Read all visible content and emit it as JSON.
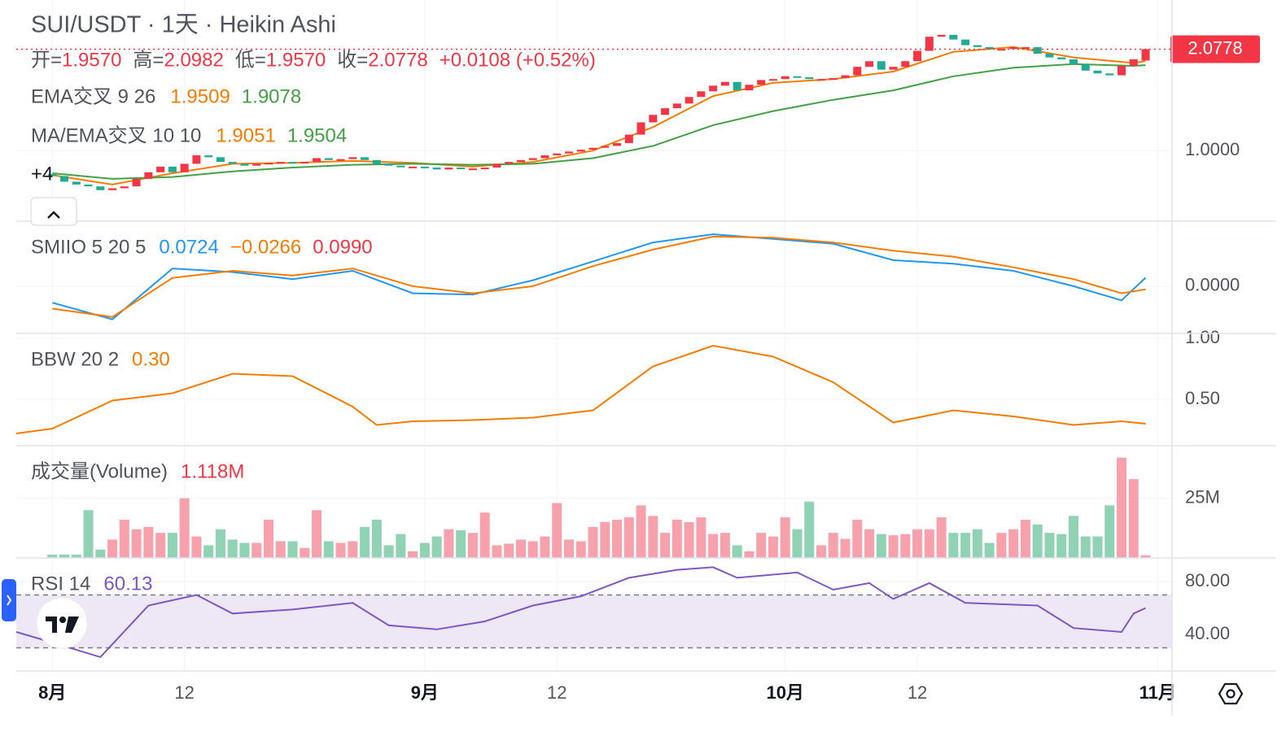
{
  "chart_data": [
    {
      "type": "candlestick",
      "title": "SUI/USDT · 1天 · Heikin Ashi",
      "ohlc_legend": [
        {
          "label": "开=",
          "value": "1.9570"
        },
        {
          "label": "高=",
          "value": "2.0982"
        },
        {
          "label": "低=",
          "value": "1.9570"
        },
        {
          "label": "收=",
          "value": "2.0778"
        }
      ],
      "change": "+0.0108 (+0.52%)",
      "indicators": [
        {
          "name": "EMA交叉 9 26",
          "values": [
            "1.9509",
            "1.9078"
          ],
          "colors": [
            "#f57c00",
            "#43a047"
          ]
        },
        {
          "name": "MA/EMA交叉 10 10",
          "values": [
            "1.9051",
            "1.9504"
          ],
          "colors": [
            "#f57c00",
            "#43a047"
          ]
        }
      ],
      "hidden_indicators": "+4",
      "up_color": "#f23645",
      "down_color": "#22ab94",
      "x": [
        0,
        1,
        2,
        3,
        4,
        5,
        6,
        7,
        8,
        9,
        10,
        11,
        12,
        13,
        14,
        15,
        16,
        17,
        18,
        19,
        20,
        21,
        22,
        23,
        24,
        25,
        26,
        27,
        28,
        29,
        30,
        31,
        32,
        33,
        34,
        35,
        36,
        37,
        38,
        39,
        40,
        41,
        42,
        43,
        44,
        45,
        46,
        47,
        48,
        49,
        50,
        51,
        52,
        53,
        54,
        55,
        56,
        57,
        58,
        59,
        60,
        61,
        62,
        63,
        64,
        65,
        66,
        67,
        68,
        69,
        70,
        71,
        72,
        73,
        74,
        75,
        76,
        77,
        78,
        79,
        80,
        81,
        82,
        83,
        84,
        85,
        86,
        87,
        88,
        89,
        90,
        91
      ],
      "open": [
        0.75,
        0.73,
        0.67,
        0.64,
        0.62,
        0.58,
        0.6,
        0.62,
        0.7,
        0.77,
        0.83,
        0.77,
        0.86,
        0.95,
        0.93,
        0.88,
        0.86,
        0.84,
        0.86,
        0.87,
        0.88,
        0.87,
        0.88,
        0.92,
        0.9,
        0.91,
        0.93,
        0.9,
        0.86,
        0.84,
        0.83,
        0.83,
        0.82,
        0.8,
        0.82,
        0.81,
        0.81,
        0.82,
        0.86,
        0.88,
        0.9,
        0.92,
        0.95,
        0.97,
        0.99,
        1.01,
        1.03,
        1.05,
        1.08,
        1.17,
        1.3,
        1.38,
        1.45,
        1.5,
        1.57,
        1.63,
        1.69,
        1.73,
        1.64,
        1.7,
        1.75,
        1.76,
        1.79,
        1.78,
        1.76,
        1.76,
        1.77,
        1.8,
        1.89,
        1.95,
        1.86,
        1.89,
        1.95,
        2.06,
        2.21,
        2.23,
        2.18,
        2.12,
        2.1,
        2.08,
        2.08,
        2.1,
        2.1,
        2.03,
        1.99,
        1.97,
        1.92,
        1.85,
        1.82,
        1.8,
        1.9,
        1.957
      ],
      "close": [
        0.73,
        0.67,
        0.64,
        0.62,
        0.58,
        0.6,
        0.62,
        0.7,
        0.77,
        0.83,
        0.77,
        0.86,
        0.95,
        0.93,
        0.88,
        0.86,
        0.84,
        0.86,
        0.87,
        0.88,
        0.87,
        0.88,
        0.92,
        0.9,
        0.91,
        0.93,
        0.9,
        0.86,
        0.84,
        0.83,
        0.83,
        0.82,
        0.8,
        0.82,
        0.81,
        0.81,
        0.82,
        0.86,
        0.88,
        0.9,
        0.92,
        0.95,
        0.97,
        0.99,
        1.01,
        1.03,
        1.05,
        1.08,
        1.17,
        1.3,
        1.38,
        1.45,
        1.5,
        1.57,
        1.63,
        1.69,
        1.73,
        1.64,
        1.7,
        1.75,
        1.76,
        1.79,
        1.78,
        1.76,
        1.76,
        1.77,
        1.8,
        1.89,
        1.95,
        1.86,
        1.89,
        1.95,
        2.06,
        2.21,
        2.23,
        2.18,
        2.12,
        2.1,
        2.08,
        2.08,
        2.1,
        2.1,
        2.03,
        1.99,
        1.97,
        1.92,
        1.85,
        1.82,
        1.8,
        1.9,
        1.97,
        2.0778
      ],
      "lines": [
        {
          "color": "#f57c00",
          "x": [
            0,
            5,
            10,
            15,
            20,
            25,
            30,
            35,
            40,
            45,
            50,
            55,
            60,
            65,
            70,
            75,
            80,
            85,
            90,
            91
          ],
          "values": [
            0.74,
            0.64,
            0.76,
            0.86,
            0.87,
            0.89,
            0.87,
            0.83,
            0.88,
            1.0,
            1.25,
            1.58,
            1.72,
            1.76,
            1.84,
            2.05,
            2.1,
            1.99,
            1.93,
            1.9509
          ]
        },
        {
          "color": "#43a047",
          "x": [
            0,
            5,
            10,
            15,
            20,
            25,
            30,
            35,
            40,
            45,
            50,
            55,
            60,
            65,
            70,
            75,
            80,
            85,
            90,
            91
          ],
          "values": [
            0.76,
            0.7,
            0.72,
            0.78,
            0.82,
            0.85,
            0.86,
            0.85,
            0.86,
            0.92,
            1.05,
            1.27,
            1.42,
            1.54,
            1.64,
            1.79,
            1.88,
            1.92,
            1.9,
            1.9078
          ]
        }
      ],
      "last_price": {
        "value": 2.0778,
        "label": "2.0778"
      },
      "ylim": [
        0.25,
        2.6
      ],
      "yticks": [
        {
          "value": 1,
          "label": "1.0000"
        }
      ],
      "xlim": [
        -3,
        93.2
      ],
      "xticks": [
        {
          "value": 0,
          "label": "8月"
        },
        {
          "value": 11,
          "label": "12"
        },
        {
          "value": 31,
          "label": "9月"
        },
        {
          "value": 42,
          "label": "12"
        },
        {
          "value": 61,
          "label": "10月"
        },
        {
          "value": 72,
          "label": "12"
        },
        {
          "value": 92,
          "label": "11月"
        }
      ]
    },
    {
      "type": "line",
      "name": "SMIIO 5 20 5",
      "legend_values": [
        {
          "text": "0.0724",
          "color": "#2196f3"
        },
        {
          "text": "−0.0266",
          "color": "#f57c00"
        },
        {
          "text": "0.0990",
          "color": "#f23645"
        }
      ],
      "series": [
        {
          "color": "#2196f3",
          "x": [
            0,
            5,
            10,
            15,
            20,
            25,
            30,
            35,
            40,
            45,
            50,
            55,
            60,
            65,
            70,
            75,
            80,
            85,
            89,
            91
          ],
          "values": [
            -0.14,
            -0.28,
            0.15,
            0.12,
            0.06,
            0.13,
            -0.06,
            -0.07,
            0.05,
            0.21,
            0.37,
            0.44,
            0.4,
            0.36,
            0.22,
            0.19,
            0.13,
            0.0,
            -0.12,
            0.0724
          ]
        },
        {
          "color": "#f57c00",
          "x": [
            0,
            5,
            10,
            15,
            20,
            25,
            30,
            35,
            40,
            45,
            50,
            55,
            60,
            65,
            70,
            75,
            80,
            85,
            89,
            91
          ],
          "values": [
            -0.19,
            -0.26,
            0.07,
            0.13,
            0.09,
            0.15,
            0.0,
            -0.06,
            0.0,
            0.17,
            0.31,
            0.42,
            0.41,
            0.37,
            0.3,
            0.25,
            0.16,
            0.06,
            -0.06,
            -0.0266
          ]
        }
      ],
      "ylim": [
        -0.4,
        0.55
      ],
      "yticks": [
        {
          "value": 0,
          "label": "0.0000"
        }
      ]
    },
    {
      "type": "line",
      "name": "BBW 20 2",
      "legend_values": [
        {
          "text": "0.30",
          "color": "#f57c00"
        }
      ],
      "series": [
        {
          "color": "#f57c00",
          "x": [
            -3,
            0,
            5,
            10,
            15,
            20,
            25,
            27,
            30,
            35,
            40,
            45,
            50,
            55,
            60,
            65,
            70,
            75,
            80,
            85,
            89,
            91
          ],
          "values": [
            0.22,
            0.26,
            0.49,
            0.55,
            0.71,
            0.69,
            0.44,
            0.29,
            0.32,
            0.33,
            0.35,
            0.41,
            0.77,
            0.94,
            0.85,
            0.64,
            0.31,
            0.41,
            0.36,
            0.29,
            0.32,
            0.3
          ]
        }
      ],
      "ylim": [
        0.12,
        1.04
      ],
      "yticks": [
        {
          "value": 0.5,
          "label": "0.50"
        },
        {
          "value": 1,
          "label": "1.00"
        }
      ]
    },
    {
      "type": "bar",
      "name": "成交量(Volume)",
      "legend_values": [
        {
          "text": "1.118M",
          "color": "#f23645"
        }
      ],
      "up_color": "#f7a1ad",
      "down_color": "#8fd3b4",
      "values": [
        1.4,
        1.4,
        1.4,
        20,
        3.5,
        7.7,
        16,
        12,
        13,
        10.5,
        10.5,
        25,
        9,
        5.3,
        12,
        7.7,
        6.3,
        6.3,
        16,
        7,
        7,
        4.2,
        20,
        7,
        6.3,
        7,
        13,
        16,
        5.3,
        10,
        2.8,
        6.3,
        9,
        12,
        11.6,
        10.5,
        19,
        5.3,
        6,
        7.7,
        7,
        9,
        23,
        7.7,
        7,
        13,
        15,
        16,
        17,
        22,
        17.6,
        10.5,
        16,
        15,
        17,
        10,
        10.5,
        5.3,
        2.8,
        10.5,
        9,
        17,
        12,
        23.6,
        5.3,
        10.5,
        8,
        16,
        12,
        10,
        9.5,
        10,
        12,
        12,
        17,
        10.5,
        10.5,
        12,
        6.3,
        10.5,
        12,
        16,
        14,
        10.5,
        10,
        17.6,
        9,
        9,
        22,
        42,
        33,
        1.118
      ],
      "ylim": [
        0,
        47
      ],
      "yticks": [
        {
          "value": 25,
          "label": "25M"
        }
      ]
    },
    {
      "type": "line",
      "name": "RSI 14",
      "legend_values": [
        {
          "text": "60.13",
          "color": "#7e57c2"
        }
      ],
      "band": [
        30,
        70
      ],
      "series": [
        {
          "color": "#7e57c2",
          "x": [
            -3,
            0,
            4,
            8,
            10,
            12,
            15,
            20,
            25,
            28,
            32,
            36,
            40,
            44,
            48,
            52,
            55,
            57,
            62,
            65,
            68,
            70,
            73,
            76,
            82,
            85,
            89,
            90,
            91
          ],
          "values": [
            42,
            34,
            23,
            62,
            66,
            70,
            56,
            59,
            64,
            47,
            44,
            50,
            62,
            69,
            83,
            89,
            91,
            83,
            87,
            74,
            79,
            67,
            79,
            64,
            62,
            45,
            42,
            56,
            60.13
          ]
        }
      ],
      "ylim": [
        12.5,
        98
      ],
      "yticks": [
        {
          "value": 80,
          "label": "80.00"
        },
        {
          "value": 40,
          "label": "40.00"
        }
      ]
    }
  ]
}
